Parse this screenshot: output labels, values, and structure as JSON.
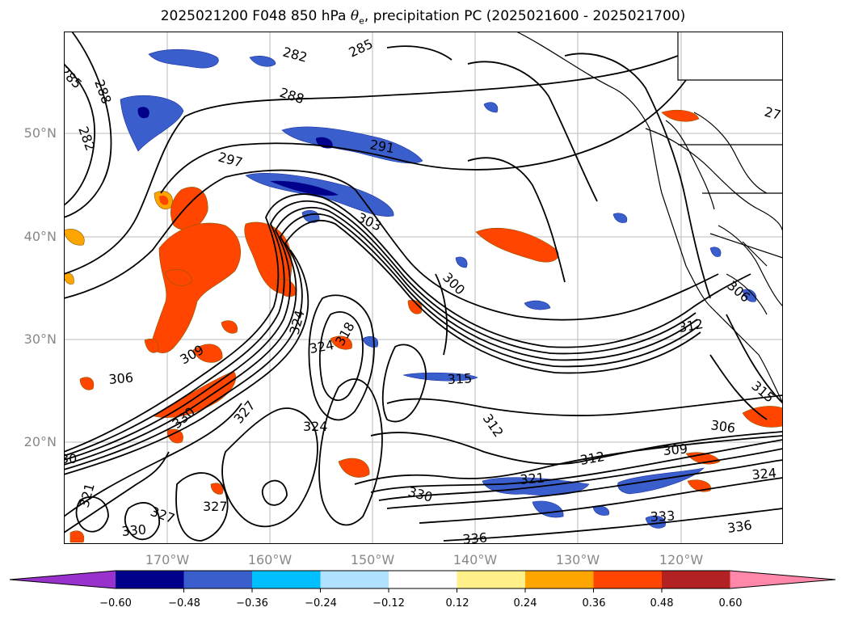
{
  "title": {
    "prefix": "2025021200 F048 850 hPa ",
    "symbol": "θ",
    "subscript": "e",
    "suffix": ", precipitation PC (2025021600 - 2025021700)"
  },
  "lat_labels": [
    "50°N",
    "40°N",
    "30°N",
    "20°N"
  ],
  "lon_labels": [
    "170°W",
    "160°W",
    "150°W",
    "140°W",
    "130°W",
    "120°W"
  ],
  "colorbar": {
    "colors": [
      "#9932cc",
      "#00008b",
      "#3a5fcd",
      "#00bfff",
      "#b0e2ff",
      "#ffffff",
      "#fff08a",
      "#ffa500",
      "#ff4500",
      "#b22222",
      "#ff88aa"
    ],
    "ticks": [
      "−0.60",
      "−0.48",
      "−0.36",
      "−0.24",
      "−0.12",
      "0.12",
      "0.24",
      "0.36",
      "0.48",
      "0.60"
    ]
  },
  "contour_labels": [
    "285",
    "282",
    "288",
    "288",
    "282",
    "297",
    "291",
    "303",
    "300",
    "312",
    "306",
    "306",
    "309",
    "324",
    "324",
    "318",
    "315",
    "315",
    "312",
    "306",
    "309",
    "312",
    "324",
    "321",
    "330",
    "333",
    "336",
    "330",
    "336",
    "327",
    "330",
    "321",
    "327",
    "327",
    "324",
    "30",
    "27",
    "285"
  ]
}
